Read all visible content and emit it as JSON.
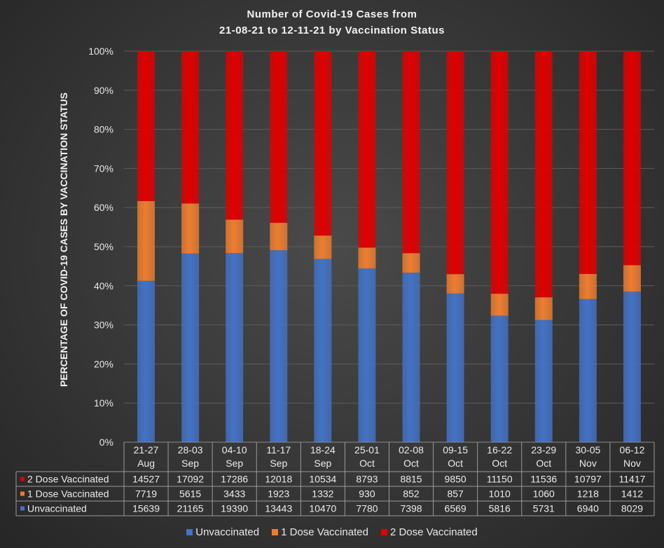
{
  "chart_data": {
    "type": "bar",
    "stacked": "percent",
    "title_line1": "Number of Covid-19 Cases from",
    "title_line2": "21-08-21 to 12-11-21 by Vaccination Status",
    "ylabel": "PERCENTAGE OF COVID-19 CASES BY VACCINATION STATUS",
    "xlabel": "",
    "ylim": [
      0,
      100
    ],
    "yticks": [
      "0%",
      "10%",
      "20%",
      "30%",
      "40%",
      "50%",
      "60%",
      "70%",
      "80%",
      "90%",
      "100%"
    ],
    "grid": true,
    "legend_position": "bottom",
    "categories": [
      [
        "21-27",
        "Aug"
      ],
      [
        "28-03",
        "Sep"
      ],
      [
        "04-10",
        "Sep"
      ],
      [
        "11-17",
        "Sep"
      ],
      [
        "18-24",
        "Sep"
      ],
      [
        "25-01",
        "Oct"
      ],
      [
        "02-08",
        "Oct"
      ],
      [
        "09-15",
        "Oct"
      ],
      [
        "16-22",
        "Oct"
      ],
      [
        "23-29",
        "Oct"
      ],
      [
        "30-05",
        "Nov"
      ],
      [
        "06-12",
        "Nov"
      ]
    ],
    "series": [
      {
        "name": "Unvaccinated",
        "color": "#4472c4",
        "values": [
          15639,
          21165,
          19390,
          13443,
          10470,
          7780,
          7398,
          6569,
          5816,
          5731,
          6940,
          8029
        ]
      },
      {
        "name": "1 Dose Vaccinated",
        "color": "#ed7d31",
        "values": [
          7719,
          5615,
          3433,
          1923,
          1332,
          930,
          852,
          857,
          1010,
          1060,
          1218,
          1412
        ]
      },
      {
        "name": "2 Dose Vaccinated",
        "color": "#e00000",
        "values": [
          14527,
          17092,
          17286,
          12018,
          10534,
          8793,
          8815,
          9850,
          11150,
          11536,
          10797,
          11417
        ]
      }
    ],
    "table_row_order": [
      "2 Dose Vaccinated",
      "1 Dose Vaccinated",
      "Unvaccinated"
    ],
    "legend": [
      "Unvaccinated",
      "1 Dose Vaccinated",
      "2 Dose Vaccinated"
    ]
  }
}
